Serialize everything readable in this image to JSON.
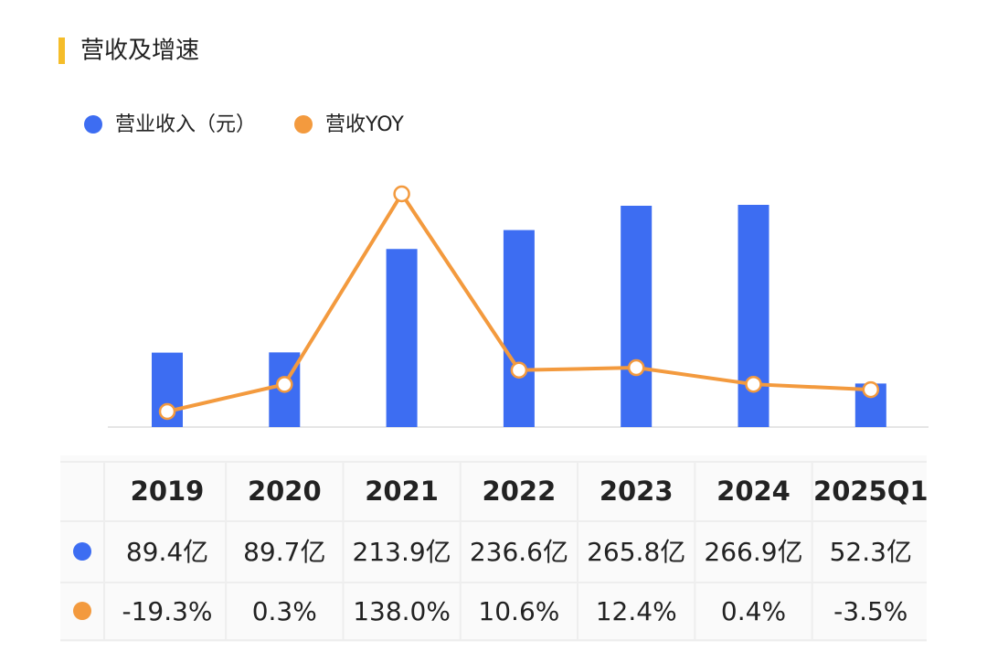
{
  "chart_data": {
    "type": "bar",
    "title": "营收及增速",
    "categories": [
      "2019",
      "2020",
      "2021",
      "2022",
      "2023",
      "2024",
      "2025Q1"
    ],
    "series": [
      {
        "name": "营业收入（元）",
        "type": "bar",
        "color": "#3d6df2",
        "values": [
          89.4,
          89.7,
          213.9,
          236.6,
          265.8,
          266.9,
          52.3
        ],
        "value_labels": [
          "89.4亿",
          "89.7亿",
          "213.9亿",
          "236.6亿",
          "265.8亿",
          "266.9亿",
          "52.3亿"
        ]
      },
      {
        "name": "营收YOY",
        "type": "line",
        "axis": "y2",
        "color": "#f39a3e",
        "values": [
          -19.3,
          0.3,
          138.0,
          10.6,
          12.4,
          0.4,
          -3.5
        ],
        "value_labels": [
          "-19.3%",
          "0.3%",
          "138.0%",
          "10.6%",
          "12.4%",
          "0.4%",
          "-3.5%"
        ]
      }
    ]
  }
}
